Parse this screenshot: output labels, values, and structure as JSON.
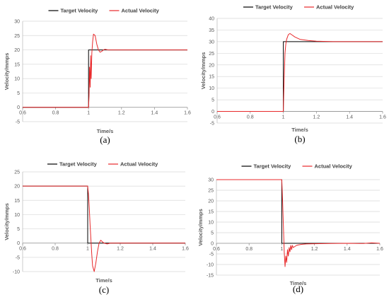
{
  "chart_data": [
    {
      "type": "line",
      "panel": "a",
      "caption": "(a)",
      "xlabel": "Time/s",
      "ylabel": "Velocity/mmps",
      "xlim": [
        0.6,
        1.6
      ],
      "ylim": [
        -5,
        30
      ],
      "xticks": [
        0.6,
        0.8,
        1,
        1.2,
        1.4,
        1.6
      ],
      "xtick_labels": [
        "0.6",
        "0.8",
        "1",
        "1.2",
        "1.4",
        "1.6"
      ],
      "yticks": [
        -5,
        0,
        5,
        10,
        15,
        20,
        25,
        30
      ],
      "ytick_labels": [
        "-5",
        "0",
        "5",
        "10",
        "15",
        "20",
        "25",
        "30"
      ],
      "legend": [
        "Target Velocity",
        "Actual Velocity"
      ],
      "legend_position": "top",
      "grid": "horizontal",
      "colors": {
        "target": "#000000",
        "actual": "#e8292b"
      },
      "series": [
        {
          "name": "Target Velocity",
          "x": [
            0.6,
            1.0,
            1.0,
            1.6
          ],
          "y": [
            0,
            0,
            20,
            20
          ]
        },
        {
          "name": "Actual Velocity",
          "x": [
            0.6,
            1.0,
            1.003,
            1.006,
            1.01,
            1.013,
            1.016,
            1.02,
            1.025,
            1.03,
            1.04,
            1.05,
            1.06,
            1.07,
            1.08,
            1.09,
            1.1,
            1.12,
            1.14,
            1.6
          ],
          "y": [
            0,
            0,
            4,
            14,
            7,
            18,
            10,
            19,
            23,
            25.5,
            25,
            22,
            20,
            19.2,
            19.5,
            20,
            20.2,
            20,
            20,
            20
          ]
        }
      ]
    },
    {
      "type": "line",
      "panel": "b",
      "caption": "(b)",
      "xlabel": "Time/s",
      "ylabel": "Velocity/mmps",
      "xlim": [
        0.6,
        1.6
      ],
      "ylim": [
        -5,
        40
      ],
      "xticks": [
        0.6,
        0.8,
        1,
        1.2,
        1.4,
        1.6
      ],
      "xtick_labels": [
        "0.6",
        "0.8",
        "1",
        "1.2",
        "1.4",
        "1.6"
      ],
      "yticks": [
        -5,
        0,
        5,
        10,
        15,
        20,
        25,
        30,
        35,
        40
      ],
      "ytick_labels": [
        "-5",
        "0",
        "5",
        "10",
        "15",
        "20",
        "25",
        "30",
        "35",
        "40"
      ],
      "legend": [
        "Target Velocity",
        "Actual Velocity"
      ],
      "legend_position": "top",
      "grid": "horizontal",
      "colors": {
        "target": "#000000",
        "actual": "#e8292b"
      },
      "series": [
        {
          "name": "Target Velocity",
          "x": [
            0.6,
            1.0,
            1.0,
            1.6
          ],
          "y": [
            0,
            0,
            30,
            30
          ]
        },
        {
          "name": "Actual Velocity",
          "x": [
            0.6,
            1.0,
            1.005,
            1.01,
            1.015,
            1.02,
            1.03,
            1.04,
            1.05,
            1.07,
            1.1,
            1.15,
            1.2,
            1.3,
            1.6
          ],
          "y": [
            0,
            0,
            14,
            25,
            29,
            31,
            33,
            33.5,
            33,
            32,
            31,
            30.5,
            30.2,
            30,
            30
          ]
        }
      ]
    },
    {
      "type": "line",
      "panel": "c",
      "caption": "(c)",
      "xlabel": "Time/s",
      "ylabel": "Velocity/mmps",
      "xlim": [
        0.6,
        1.6
      ],
      "ylim": [
        -10,
        25
      ],
      "xticks": [
        0.6,
        0.8,
        1,
        1.2,
        1.4,
        1.6
      ],
      "xtick_labels": [
        "0.6",
        "0.8",
        "1",
        "1.2",
        "1.4",
        "1.6"
      ],
      "yticks": [
        -10,
        -5,
        0,
        5,
        10,
        15,
        20,
        25
      ],
      "ytick_labels": [
        "-10",
        "-5",
        "0",
        "5",
        "10",
        "15",
        "20",
        "25"
      ],
      "legend": [
        "Target Velocity",
        "Actual Velocity"
      ],
      "legend_position": "top",
      "grid": "horizontal",
      "colors": {
        "target": "#000000",
        "actual": "#e8292b"
      },
      "series": [
        {
          "name": "Target Velocity",
          "x": [
            0.6,
            1.0,
            1.0,
            1.6
          ],
          "y": [
            20,
            20,
            0,
            0
          ]
        },
        {
          "name": "Actual Velocity",
          "x": [
            0.6,
            1.0,
            1.005,
            1.01,
            1.015,
            1.02,
            1.025,
            1.03,
            1.04,
            1.05,
            1.06,
            1.07,
            1.08,
            1.09,
            1.1,
            1.12,
            1.14,
            1.6
          ],
          "y": [
            20,
            20,
            17,
            12,
            6,
            1,
            -4,
            -8,
            -10,
            -7,
            -3,
            0,
            1,
            0.5,
            0,
            -0.3,
            0,
            0
          ]
        }
      ]
    },
    {
      "type": "line",
      "panel": "d",
      "caption": "(d)",
      "xlabel": "Time/s",
      "ylabel": "Velocity/mmps",
      "xlim": [
        0.6,
        1.6
      ],
      "ylim": [
        -15,
        30
      ],
      "xticks": [
        0.6,
        0.8,
        1,
        1.2,
        1.4,
        1.6
      ],
      "xtick_labels": [
        "0.6",
        "0.8",
        "1",
        "1.2",
        "1.4",
        "1.6"
      ],
      "yticks": [
        -15,
        -10,
        -5,
        0,
        5,
        10,
        15,
        20,
        25,
        30
      ],
      "ytick_labels": [
        "-15",
        "-10",
        "-5",
        "0",
        "5",
        "10",
        "15",
        "20",
        "25",
        "30"
      ],
      "legend": [
        "Target Velocity",
        "Actual Velocity"
      ],
      "legend_position": "top",
      "grid": "horizontal",
      "colors": {
        "target": "#000000",
        "actual": "#e8292b"
      },
      "series": [
        {
          "name": "Target Velocity",
          "x": [
            0.6,
            1.0,
            1.0,
            1.6
          ],
          "y": [
            30,
            30,
            0,
            0
          ]
        },
        {
          "name": "Actual Velocity",
          "x": [
            0.6,
            1.0,
            1.005,
            1.01,
            1.015,
            1.02,
            1.025,
            1.03,
            1.035,
            1.04,
            1.045,
            1.05,
            1.055,
            1.06,
            1.065,
            1.07,
            1.08,
            1.09,
            1.1,
            1.12,
            1.15,
            1.2,
            1.3,
            1.4,
            1.5,
            1.55,
            1.6
          ],
          "y": [
            30,
            30,
            20,
            8,
            -4,
            -11,
            -6,
            -9,
            -3,
            -6,
            -2,
            -4,
            -1,
            -3,
            -1,
            -2,
            -1.5,
            -1,
            -0.8,
            -0.5,
            -0.3,
            -0.2,
            -0.1,
            0,
            -0.1,
            0.2,
            0
          ]
        }
      ]
    }
  ]
}
